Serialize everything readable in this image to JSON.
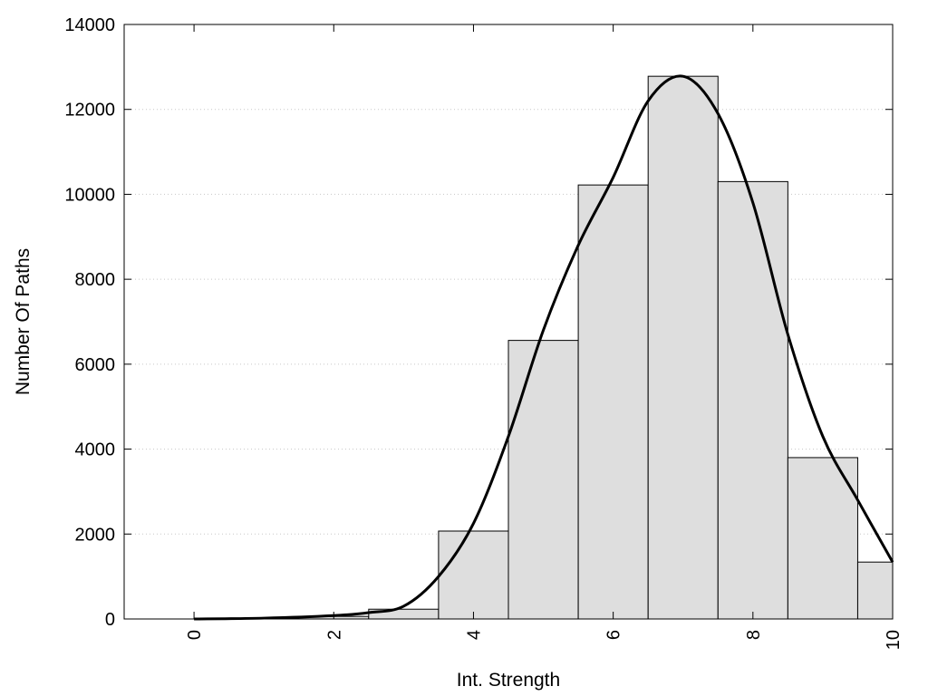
{
  "chart_data": {
    "type": "bar",
    "xlabel": "Int. Strength",
    "ylabel": "Number Of Paths",
    "xlim": [
      -1,
      10
    ],
    "ylim": [
      0,
      14000
    ],
    "x_ticks": [
      0,
      2,
      4,
      6,
      8,
      10
    ],
    "y_ticks": [
      0,
      2000,
      4000,
      6000,
      8000,
      10000,
      12000,
      14000
    ],
    "grid": "horizontal dotted",
    "bin_width": 1,
    "bins": [
      {
        "x": 0,
        "value": 0
      },
      {
        "x": 1,
        "value": 20
      },
      {
        "x": 2,
        "value": 60
      },
      {
        "x": 3,
        "value": 230
      },
      {
        "x": 4,
        "value": 2070
      },
      {
        "x": 5,
        "value": 6560
      },
      {
        "x": 6,
        "value": 10220
      },
      {
        "x": 7,
        "value": 12780
      },
      {
        "x": 8,
        "value": 10300
      },
      {
        "x": 9,
        "value": 3800
      },
      {
        "x": 10,
        "value": 1340
      }
    ],
    "curve": {
      "x": [
        0,
        1,
        2,
        2.5,
        3,
        3.5,
        4,
        4.5,
        5,
        5.5,
        6,
        6.5,
        7,
        7.5,
        8,
        8.5,
        9,
        9.5,
        10
      ],
      "y": [
        0,
        20,
        80,
        150,
        300,
        1000,
        2250,
        4300,
        6800,
        8800,
        10400,
        12200,
        12780,
        11900,
        9800,
        6700,
        4300,
        2800,
        1340
      ]
    },
    "colors": {
      "bar_fill": "#dedede",
      "bar_stroke": "#000000",
      "curve": "#000000",
      "grid": "#c8c8c8"
    }
  }
}
